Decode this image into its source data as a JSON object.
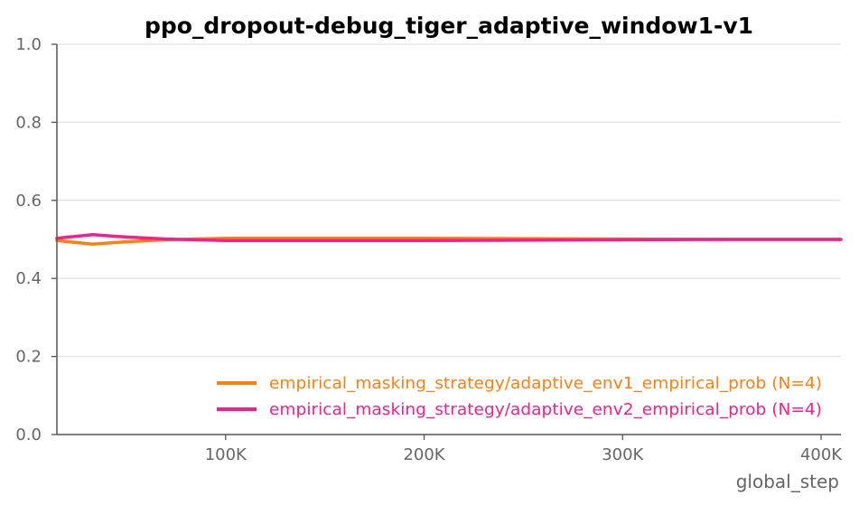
{
  "chart_data": {
    "type": "line",
    "title": "ppo_dropout-debug_tiger_adaptive_window1-v1",
    "xlabel": "global_step",
    "ylabel": "",
    "xlim": [
      15000,
      410000
    ],
    "ylim": [
      0,
      1.0
    ],
    "x_ticks": [
      {
        "value": 100000,
        "label": "100K"
      },
      {
        "value": 200000,
        "label": "200K"
      },
      {
        "value": 300000,
        "label": "300K"
      },
      {
        "value": 400000,
        "label": "400K"
      }
    ],
    "y_ticks": [
      {
        "value": 0.0,
        "label": "0.0"
      },
      {
        "value": 0.2,
        "label": "0.2"
      },
      {
        "value": 0.4,
        "label": "0.4"
      },
      {
        "value": 0.6,
        "label": "0.6"
      },
      {
        "value": 0.8,
        "label": "0.8"
      },
      {
        "value": 1.0,
        "label": "1.0"
      }
    ],
    "grid": true,
    "legend_position": "bottom-right",
    "series": [
      {
        "name": "empirical_masking_strategy/adaptive_env1_empirical_prob (N=4)",
        "color": "#ff7f0e",
        "x": [
          15000,
          33000,
          50000,
          70000,
          100000,
          150000,
          200000,
          250000,
          300000,
          350000,
          410000
        ],
        "y": [
          0.497,
          0.488,
          0.494,
          0.499,
          0.503,
          0.503,
          0.503,
          0.502,
          0.501,
          0.5,
          0.5
        ]
      },
      {
        "name": "empirical_masking_strategy/adaptive_env2_empirical_prob (N=4)",
        "color": "#f61d8c",
        "x": [
          15000,
          33000,
          50000,
          70000,
          100000,
          150000,
          200000,
          250000,
          300000,
          350000,
          410000
        ],
        "y": [
          0.503,
          0.512,
          0.506,
          0.501,
          0.497,
          0.497,
          0.497,
          0.498,
          0.499,
          0.5,
          0.5
        ]
      }
    ]
  }
}
